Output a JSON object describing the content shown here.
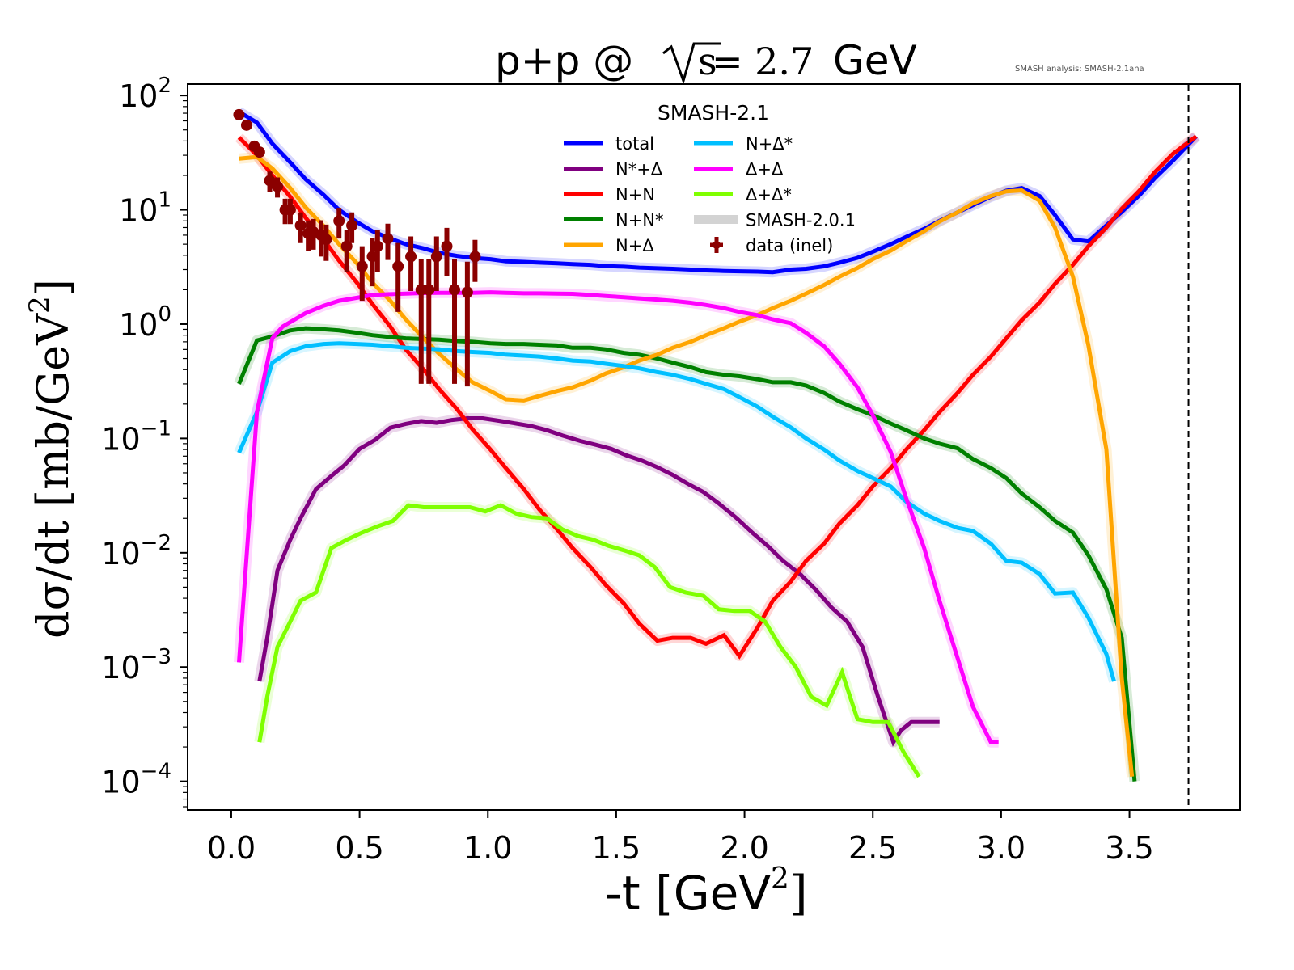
{
  "chart_data": {
    "type": "line",
    "title": {
      "prefix": "p+p @ ",
      "sqrt_arg": "s",
      "equals": " = 2.7",
      "suffix": " GeV"
    },
    "corner_note": "SMASH analysis: SMASH-2.1ana",
    "xlabel": {
      "main": "-t [GeV",
      "sup": "2",
      "close": "]"
    },
    "ylabel": {
      "main": "dσ/dt [mb/GeV",
      "sup": "2",
      "close": "]"
    },
    "xlim": [
      -0.17,
      3.93
    ],
    "ylim_log10": [
      -4.25,
      2.1
    ],
    "yscale": "log",
    "x_ticks": [
      0.0,
      0.5,
      1.0,
      1.5,
      2.0,
      2.5,
      3.0,
      3.5
    ],
    "x_tick_labels": [
      "0.0",
      "0.5",
      "1.0",
      "1.5",
      "2.0",
      "2.5",
      "3.0",
      "3.5"
    ],
    "y_ticks_exp": [
      2,
      1,
      0,
      -1,
      -2,
      -3,
      -4
    ],
    "y_tick_labels": [
      {
        "base": "10",
        "exp": "2"
      },
      {
        "base": "10",
        "exp": "1"
      },
      {
        "base": "10",
        "exp": "0"
      },
      {
        "base": "10",
        "exp": "−1"
      },
      {
        "base": "10",
        "exp": "−2"
      },
      {
        "base": "10",
        "exp": "−3"
      },
      {
        "base": "10",
        "exp": "−4"
      }
    ],
    "vline_x": 3.73,
    "grid": false,
    "legend": {
      "title": "SMASH-2.1",
      "placement": "top-center",
      "entries": [
        {
          "label": "total",
          "key": "total"
        },
        {
          "label": "N*+Δ",
          "key": "nstar_delta"
        },
        {
          "label": "N+N",
          "key": "nn"
        },
        {
          "label": "N+N*",
          "key": "n_nstar"
        },
        {
          "label": "N+Δ",
          "key": "n_delta"
        },
        {
          "label": "N+Δ*",
          "key": "n_deltastar"
        },
        {
          "label": "Δ+Δ",
          "key": "delta_delta"
        },
        {
          "label": "Δ+Δ*",
          "key": "delta_deltastar"
        },
        {
          "label": "SMASH-2.0.1",
          "key": "ref"
        },
        {
          "label": "data (inel)",
          "key": "data"
        }
      ]
    },
    "colors": {
      "total": "#0000ff",
      "nstar_delta": "#800080",
      "nn": "#ff0000",
      "n_nstar": "#008000",
      "n_delta": "#ffa500",
      "n_deltastar": "#00bfff",
      "delta_delta": "#ff00ff",
      "delta_deltastar": "#7fff00",
      "ref": "#d3d3d3",
      "data": "#8b0000"
    },
    "series": [
      {
        "name": "total",
        "key": "total",
        "x": [
          0.03,
          0.1,
          0.16,
          0.23,
          0.29,
          0.36,
          0.42,
          0.49,
          0.55,
          0.62,
          0.68,
          0.75,
          0.81,
          0.88,
          0.94,
          1.01,
          1.07,
          1.14,
          1.2,
          1.27,
          1.33,
          1.4,
          1.46,
          1.53,
          1.59,
          1.66,
          1.72,
          1.79,
          1.85,
          1.92,
          1.98,
          2.05,
          2.11,
          2.18,
          2.24,
          2.31,
          2.37,
          2.44,
          2.5,
          2.57,
          2.63,
          2.7,
          2.76,
          2.83,
          2.89,
          2.96,
          3.02,
          3.08,
          3.15,
          3.21,
          3.28,
          3.34,
          3.41,
          3.47,
          3.54,
          3.6,
          3.67,
          3.76
        ],
        "y": [
          72,
          58,
          38,
          26,
          18.5,
          13.5,
          10,
          7.8,
          6.5,
          5.6,
          5.0,
          4.6,
          4.2,
          3.95,
          3.8,
          3.7,
          3.55,
          3.5,
          3.45,
          3.4,
          3.35,
          3.3,
          3.22,
          3.18,
          3.12,
          3.08,
          3.05,
          3.0,
          2.95,
          2.92,
          2.9,
          2.88,
          2.85,
          3.0,
          3.05,
          3.2,
          3.45,
          3.8,
          4.3,
          5.0,
          5.8,
          6.8,
          8.0,
          9.5,
          11.0,
          13.0,
          14.7,
          15.5,
          13.2,
          9.0,
          5.5,
          5.3,
          7.3,
          9.6,
          13.5,
          19,
          27,
          44
        ]
      },
      {
        "name": "N*+Δ",
        "key": "nstar_delta",
        "x": [
          0.11,
          0.14,
          0.18,
          0.23,
          0.27,
          0.33,
          0.39,
          0.44,
          0.5,
          0.56,
          0.62,
          0.68,
          0.74,
          0.8,
          0.86,
          0.92,
          0.98,
          1.05,
          1.11,
          1.17,
          1.23,
          1.29,
          1.36,
          1.42,
          1.48,
          1.54,
          1.6,
          1.66,
          1.72,
          1.78,
          1.84,
          1.9,
          1.97,
          2.03,
          2.09,
          2.15,
          2.22,
          2.28,
          2.34,
          2.4,
          2.46,
          2.52,
          2.58,
          2.61,
          2.65,
          2.68,
          2.76
        ],
        "y": [
          0.00075,
          0.0018,
          0.007,
          0.013,
          0.02,
          0.036,
          0.047,
          0.058,
          0.081,
          0.097,
          0.124,
          0.134,
          0.142,
          0.137,
          0.145,
          0.15,
          0.15,
          0.142,
          0.135,
          0.128,
          0.118,
          0.106,
          0.095,
          0.088,
          0.081,
          0.071,
          0.064,
          0.056,
          0.048,
          0.04,
          0.034,
          0.027,
          0.02,
          0.015,
          0.0115,
          0.0085,
          0.0064,
          0.0047,
          0.0033,
          0.0025,
          0.0015,
          0.00055,
          0.00022,
          0.00028,
          0.00033,
          0.00033,
          0.00033
        ]
      },
      {
        "name": "N+N",
        "key": "nn",
        "x": [
          0.03,
          0.1,
          0.16,
          0.23,
          0.29,
          0.36,
          0.42,
          0.49,
          0.55,
          0.62,
          0.68,
          0.75,
          0.81,
          0.88,
          0.94,
          1.01,
          1.07,
          1.14,
          1.2,
          1.27,
          1.33,
          1.4,
          1.46,
          1.53,
          1.59,
          1.66,
          1.72,
          1.79,
          1.85,
          1.92,
          1.98,
          2.05,
          2.11,
          2.18,
          2.24,
          2.31,
          2.37,
          2.44,
          2.5,
          2.57,
          2.63,
          2.7,
          2.76,
          2.83,
          2.89,
          2.96,
          3.02,
          3.08,
          3.15,
          3.21,
          3.28,
          3.34,
          3.41,
          3.47,
          3.54,
          3.6,
          3.67,
          3.76
        ],
        "y": [
          43,
          30,
          20,
          13,
          8.5,
          5.5,
          3.6,
          2.3,
          1.5,
          0.95,
          0.6,
          0.4,
          0.27,
          0.18,
          0.12,
          0.08,
          0.055,
          0.036,
          0.024,
          0.016,
          0.011,
          0.0075,
          0.0052,
          0.0036,
          0.0024,
          0.0017,
          0.0018,
          0.0018,
          0.0016,
          0.0019,
          0.00125,
          0.0022,
          0.0038,
          0.0056,
          0.0085,
          0.012,
          0.018,
          0.026,
          0.038,
          0.055,
          0.08,
          0.118,
          0.17,
          0.25,
          0.36,
          0.52,
          0.75,
          1.08,
          1.55,
          2.25,
          3.3,
          4.8,
          7.0,
          10.2,
          14.8,
          21.5,
          31,
          44
        ]
      },
      {
        "name": "N+N*",
        "key": "n_nstar",
        "x": [
          0.03,
          0.1,
          0.16,
          0.23,
          0.29,
          0.36,
          0.42,
          0.49,
          0.55,
          0.62,
          0.68,
          0.75,
          0.81,
          0.88,
          0.94,
          1.01,
          1.07,
          1.14,
          1.2,
          1.27,
          1.33,
          1.4,
          1.46,
          1.53,
          1.59,
          1.66,
          1.72,
          1.79,
          1.85,
          1.92,
          1.98,
          2.05,
          2.11,
          2.18,
          2.24,
          2.31,
          2.37,
          2.44,
          2.5,
          2.57,
          2.63,
          2.7,
          2.76,
          2.83,
          2.89,
          2.96,
          3.02,
          3.08,
          3.15,
          3.21,
          3.28,
          3.34,
          3.41,
          3.47,
          3.52
        ],
        "y": [
          0.3,
          0.72,
          0.78,
          0.88,
          0.92,
          0.9,
          0.88,
          0.84,
          0.8,
          0.77,
          0.75,
          0.74,
          0.73,
          0.71,
          0.7,
          0.68,
          0.67,
          0.67,
          0.66,
          0.65,
          0.62,
          0.62,
          0.6,
          0.56,
          0.54,
          0.5,
          0.46,
          0.42,
          0.38,
          0.36,
          0.35,
          0.33,
          0.31,
          0.31,
          0.29,
          0.25,
          0.21,
          0.18,
          0.16,
          0.135,
          0.118,
          0.1,
          0.09,
          0.082,
          0.066,
          0.055,
          0.045,
          0.033,
          0.025,
          0.019,
          0.015,
          0.0095,
          0.0048,
          0.0018,
          0.0001
        ]
      },
      {
        "name": "N+Δ",
        "key": "n_delta",
        "x": [
          0.03,
          0.1,
          0.16,
          0.23,
          0.29,
          0.36,
          0.42,
          0.49,
          0.55,
          0.62,
          0.68,
          0.75,
          0.81,
          0.88,
          0.94,
          1.01,
          1.07,
          1.14,
          1.2,
          1.27,
          1.33,
          1.4,
          1.46,
          1.53,
          1.59,
          1.66,
          1.72,
          1.79,
          1.85,
          1.92,
          1.98,
          2.05,
          2.11,
          2.18,
          2.24,
          2.31,
          2.37,
          2.44,
          2.5,
          2.57,
          2.63,
          2.7,
          2.76,
          2.83,
          2.89,
          2.96,
          3.02,
          3.08,
          3.15,
          3.21,
          3.28,
          3.34,
          3.41,
          3.47,
          3.51
        ],
        "y": [
          28,
          29,
          23,
          15.5,
          10.5,
          7.2,
          5.0,
          3.4,
          2.3,
          1.6,
          1.1,
          0.75,
          0.55,
          0.4,
          0.31,
          0.26,
          0.22,
          0.215,
          0.235,
          0.26,
          0.28,
          0.32,
          0.37,
          0.42,
          0.48,
          0.54,
          0.62,
          0.7,
          0.8,
          0.92,
          1.05,
          1.2,
          1.38,
          1.6,
          1.85,
          2.2,
          2.6,
          3.1,
          3.7,
          4.4,
          5.3,
          6.5,
          7.9,
          9.5,
          11.4,
          13.2,
          14.5,
          14.8,
          12.0,
          7.0,
          2.6,
          0.65,
          0.08,
          0.0008,
          0.00011
        ]
      },
      {
        "name": "N+Δ*",
        "key": "n_deltastar",
        "x": [
          0.03,
          0.1,
          0.16,
          0.23,
          0.29,
          0.36,
          0.42,
          0.49,
          0.55,
          0.62,
          0.68,
          0.75,
          0.81,
          0.88,
          0.94,
          1.01,
          1.07,
          1.14,
          1.2,
          1.27,
          1.33,
          1.4,
          1.46,
          1.53,
          1.59,
          1.66,
          1.72,
          1.79,
          1.85,
          1.92,
          1.98,
          2.05,
          2.11,
          2.18,
          2.24,
          2.31,
          2.37,
          2.44,
          2.5,
          2.57,
          2.63,
          2.7,
          2.76,
          2.83,
          2.89,
          2.96,
          3.02,
          3.08,
          3.15,
          3.21,
          3.28,
          3.34,
          3.41,
          3.44
        ],
        "y": [
          0.075,
          0.17,
          0.46,
          0.58,
          0.64,
          0.67,
          0.68,
          0.67,
          0.66,
          0.64,
          0.62,
          0.61,
          0.6,
          0.58,
          0.57,
          0.56,
          0.54,
          0.53,
          0.52,
          0.5,
          0.48,
          0.47,
          0.45,
          0.43,
          0.41,
          0.38,
          0.36,
          0.33,
          0.3,
          0.27,
          0.23,
          0.19,
          0.155,
          0.125,
          0.1,
          0.08,
          0.064,
          0.052,
          0.045,
          0.038,
          0.028,
          0.022,
          0.019,
          0.0165,
          0.0155,
          0.012,
          0.0085,
          0.0082,
          0.0065,
          0.0044,
          0.0045,
          0.0027,
          0.0013,
          0.00075
        ]
      },
      {
        "name": "Δ+Δ",
        "key": "delta_delta",
        "x": [
          0.03,
          0.1,
          0.16,
          0.2,
          0.29,
          0.36,
          0.42,
          0.49,
          0.55,
          0.62,
          0.68,
          0.75,
          0.81,
          0.88,
          0.94,
          1.01,
          1.07,
          1.14,
          1.2,
          1.27,
          1.33,
          1.4,
          1.46,
          1.53,
          1.59,
          1.66,
          1.72,
          1.79,
          1.85,
          1.92,
          1.98,
          2.05,
          2.11,
          2.18,
          2.24,
          2.31,
          2.37,
          2.44,
          2.5,
          2.57,
          2.63,
          2.7,
          2.76,
          2.83,
          2.89,
          2.96,
          2.99
        ],
        "y": [
          0.0011,
          0.17,
          0.75,
          0.95,
          1.25,
          1.45,
          1.6,
          1.7,
          1.8,
          1.83,
          1.85,
          1.87,
          1.88,
          1.88,
          1.88,
          1.9,
          1.88,
          1.86,
          1.86,
          1.85,
          1.84,
          1.8,
          1.76,
          1.72,
          1.68,
          1.64,
          1.6,
          1.54,
          1.47,
          1.38,
          1.28,
          1.2,
          1.1,
          1.02,
          0.84,
          0.64,
          0.45,
          0.28,
          0.16,
          0.076,
          0.03,
          0.011,
          0.0038,
          0.0012,
          0.00045,
          0.00022,
          0.00022
        ]
      },
      {
        "name": "Δ+Δ*",
        "key": "delta_deltastar",
        "x": [
          0.11,
          0.14,
          0.18,
          0.23,
          0.27,
          0.33,
          0.39,
          0.45,
          0.51,
          0.57,
          0.63,
          0.69,
          0.75,
          0.81,
          0.87,
          0.93,
          0.99,
          1.05,
          1.11,
          1.17,
          1.23,
          1.29,
          1.35,
          1.41,
          1.47,
          1.53,
          1.59,
          1.65,
          1.71,
          1.77,
          1.84,
          1.9,
          1.96,
          2.02,
          2.08,
          2.14,
          2.2,
          2.26,
          2.32,
          2.38,
          2.44,
          2.5,
          2.56,
          2.62,
          2.68
        ],
        "y": [
          0.00022,
          0.00055,
          0.0015,
          0.0025,
          0.0038,
          0.0045,
          0.011,
          0.013,
          0.015,
          0.017,
          0.019,
          0.026,
          0.025,
          0.025,
          0.025,
          0.025,
          0.023,
          0.026,
          0.022,
          0.0205,
          0.02,
          0.016,
          0.014,
          0.013,
          0.0115,
          0.0105,
          0.0095,
          0.0075,
          0.005,
          0.0045,
          0.0042,
          0.0032,
          0.0031,
          0.0031,
          0.0025,
          0.0015,
          0.001,
          0.00055,
          0.00046,
          0.0009,
          0.00035,
          0.00033,
          0.00033,
          0.00018,
          0.00011
        ]
      }
    ],
    "reference_series_note": "SMASH-2.0.1 drawn as faint wide band under each curve",
    "data_points": {
      "name": "data (inel)",
      "x": [
        0.03,
        0.06,
        0.09,
        0.11,
        0.15,
        0.18,
        0.21,
        0.23,
        0.27,
        0.3,
        0.32,
        0.35,
        0.37,
        0.42,
        0.45,
        0.47,
        0.51,
        0.55,
        0.57,
        0.61,
        0.65,
        0.7,
        0.74,
        0.77,
        0.8,
        0.84,
        0.87,
        0.92,
        0.95
      ],
      "y": [
        68,
        55,
        36,
        32,
        18,
        16,
        10,
        10,
        7.3,
        6.2,
        6.4,
        6.0,
        5.5,
        8.0,
        4.8,
        7.3,
        3.2,
        3.9,
        4.8,
        5.6,
        3.2,
        3.9,
        2.0,
        2.0,
        3.9,
        4.8,
        2.0,
        1.9,
        3.9
      ],
      "yerr_rel": [
        0,
        0,
        0,
        0,
        0.2,
        0.2,
        0.25,
        0.25,
        0.3,
        0.3,
        0.3,
        0.35,
        0.35,
        0.3,
        0.4,
        0.3,
        0.5,
        0.45,
        0.4,
        0.35,
        0.6,
        0.5,
        0.85,
        0.85,
        0.5,
        0.45,
        0.85,
        0.85,
        0.4
      ]
    }
  }
}
